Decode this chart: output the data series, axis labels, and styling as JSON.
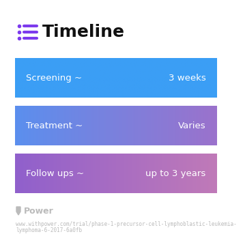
{
  "title": "Timeline",
  "title_icon_color": "#7C3AED",
  "background_color": "#ffffff",
  "rows": [
    {
      "left_label": "Screening ~",
      "right_label": "3 weeks",
      "gradient_start": "#3B9EF5",
      "gradient_end": "#3B9EF5"
    },
    {
      "left_label": "Treatment ~",
      "right_label": "Varies",
      "gradient_start": "#5B8FEE",
      "gradient_end": "#9B72CC"
    },
    {
      "left_label": "Follow ups ~",
      "right_label": "up to 3 years",
      "gradient_start": "#9060CC",
      "gradient_end": "#C07AB8"
    }
  ],
  "footer_logo_text": "Power",
  "footer_logo_color": "#bbbbbb",
  "footer_url_line1": "www.withpower.com/trial/phase-1-precursor-cell-lymphoblastic-leukemia-",
  "footer_url_line2": "lymphoma-6-2017-6a0fb",
  "footer_fontsize": 5.5,
  "footer_url_color": "#bbbbbb"
}
